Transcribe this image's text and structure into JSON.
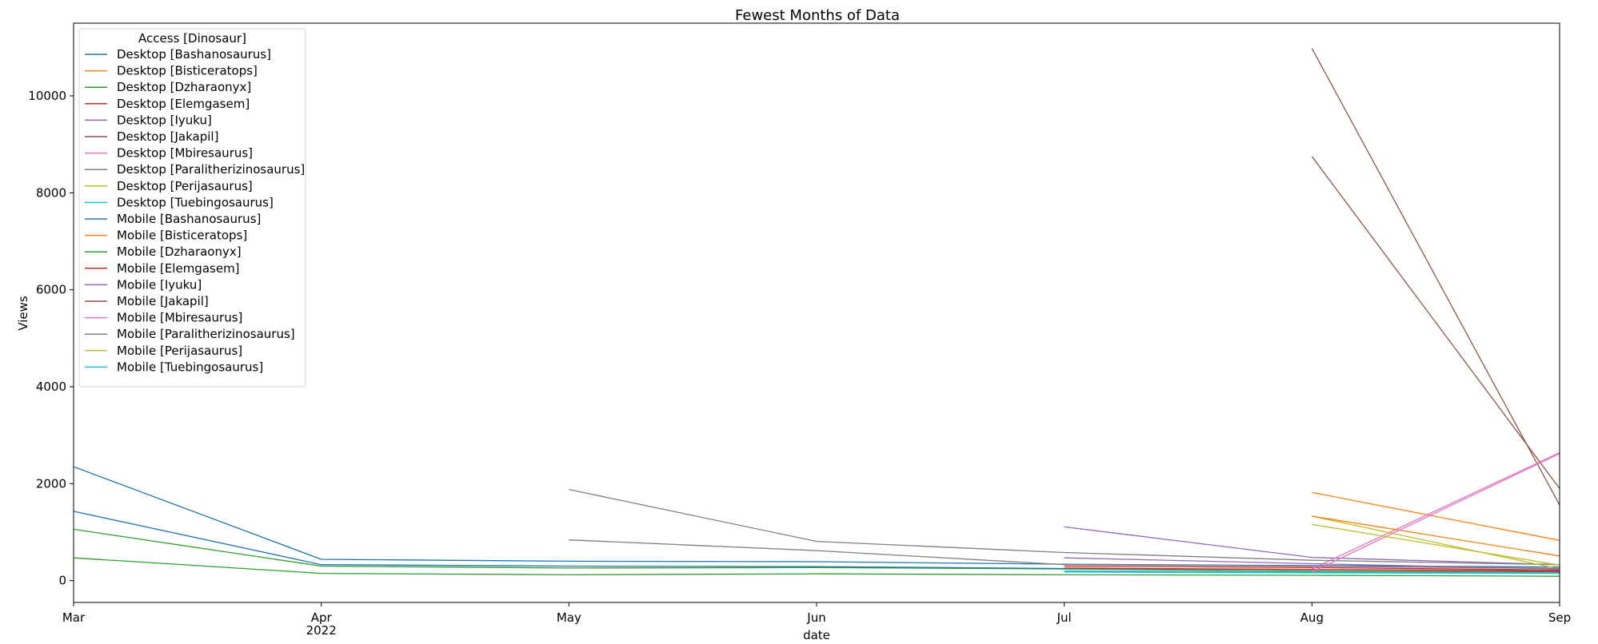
{
  "chart_data": {
    "type": "line",
    "title": "Fewest Months of Data",
    "xlabel": "date",
    "ylabel": "Views",
    "x_ticks": [
      {
        "label": "Mar",
        "sub": ""
      },
      {
        "label": "Apr",
        "sub": "2022"
      },
      {
        "label": "May",
        "sub": ""
      },
      {
        "label": "Jun",
        "sub": ""
      },
      {
        "label": "Jul",
        "sub": ""
      },
      {
        "label": "Aug",
        "sub": ""
      },
      {
        "label": "Sep",
        "sub": ""
      }
    ],
    "y_ticks": [
      0,
      2000,
      4000,
      6000,
      8000,
      10000
    ],
    "ylim": [
      -450,
      11500
    ],
    "legend": {
      "title": "Access [Dinosaur]",
      "placement": "top-left"
    },
    "series": [
      {
        "name": "Desktop [Bashanosaurus]",
        "color": "#1f77b4",
        "x": [
          0,
          1,
          2,
          3,
          4,
          5,
          6
        ],
        "y": [
          2350,
          440,
          400,
          390,
          340,
          310,
          280
        ]
      },
      {
        "name": "Desktop [Bisticeratops]",
        "color": "#ff7f0e",
        "x": [
          5,
          6
        ],
        "y": [
          1820,
          830
        ]
      },
      {
        "name": "Desktop [Dzharaonyx]",
        "color": "#2ca02c",
        "x": [
          0,
          1,
          2,
          3,
          4,
          5,
          6
        ],
        "y": [
          1060,
          300,
          260,
          270,
          240,
          200,
          170
        ]
      },
      {
        "name": "Desktop [Elemgasem]",
        "color": "#d62728",
        "x": [
          4,
          5,
          6
        ],
        "y": [
          300,
          270,
          220
        ]
      },
      {
        "name": "Desktop [Iyuku]",
        "color": "#9467bd",
        "x": [
          4,
          5,
          6
        ],
        "y": [
          1110,
          480,
          330
        ]
      },
      {
        "name": "Desktop [Jakapil]",
        "color": "#8c564b",
        "x": [
          5,
          6
        ],
        "y": [
          10980,
          1560
        ]
      },
      {
        "name": "Desktop [Mbiresaurus]",
        "color": "#e377c2",
        "x": [
          5,
          6
        ],
        "y": [
          240,
          2640
        ]
      },
      {
        "name": "Desktop [Paralitherizinosaurus]",
        "color": "#7f7f7f",
        "x": [
          2,
          3,
          4,
          5,
          6
        ],
        "y": [
          1880,
          810,
          580,
          420,
          330
        ]
      },
      {
        "name": "Desktop [Perijasaurus]",
        "color": "#bcbd22",
        "x": [
          5,
          6
        ],
        "y": [
          1330,
          240
        ]
      },
      {
        "name": "Desktop [Tuebingosaurus]",
        "color": "#17becf",
        "x": [
          4,
          5,
          6
        ],
        "y": [
          200,
          180,
          160
        ]
      },
      {
        "name": "Mobile [Bashanosaurus]",
        "color": "#1f77b4",
        "x": [
          0,
          1,
          2,
          3,
          4,
          5,
          6
        ],
        "y": [
          1430,
          330,
          300,
          290,
          250,
          230,
          200
        ]
      },
      {
        "name": "Mobile [Bisticeratops]",
        "color": "#ff7f0e",
        "x": [
          5,
          6
        ],
        "y": [
          1330,
          510
        ]
      },
      {
        "name": "Mobile [Dzharaonyx]",
        "color": "#2ca02c",
        "x": [
          0,
          1,
          2,
          3,
          4,
          5,
          6
        ],
        "y": [
          470,
          150,
          120,
          140,
          120,
          110,
          90
        ]
      },
      {
        "name": "Mobile [Elemgasem]",
        "color": "#d62728",
        "x": [
          4,
          5,
          6
        ],
        "y": [
          260,
          230,
          190
        ]
      },
      {
        "name": "Mobile [Iyuku]",
        "color": "#9467bd",
        "x": [
          4,
          5,
          6
        ],
        "y": [
          470,
          350,
          240
        ]
      },
      {
        "name": "Mobile [Jakapil]",
        "color": "#8c564b",
        "x": [
          5,
          6
        ],
        "y": [
          8750,
          1900
        ]
      },
      {
        "name": "Mobile [Mbiresaurus]",
        "color": "#e377c2",
        "x": [
          5,
          6
        ],
        "y": [
          180,
          2620
        ]
      },
      {
        "name": "Mobile [Paralitherizinosaurus]",
        "color": "#7f7f7f",
        "x": [
          2,
          3,
          4,
          5,
          6
        ],
        "y": [
          840,
          620,
          330,
          300,
          250
        ]
      },
      {
        "name": "Mobile [Perijasaurus]",
        "color": "#bcbd22",
        "x": [
          5,
          6
        ],
        "y": [
          1160,
          320
        ]
      },
      {
        "name": "Mobile [Tuebingosaurus]",
        "color": "#17becf",
        "x": [
          4,
          5,
          6
        ],
        "y": [
          180,
          160,
          150
        ]
      }
    ]
  }
}
